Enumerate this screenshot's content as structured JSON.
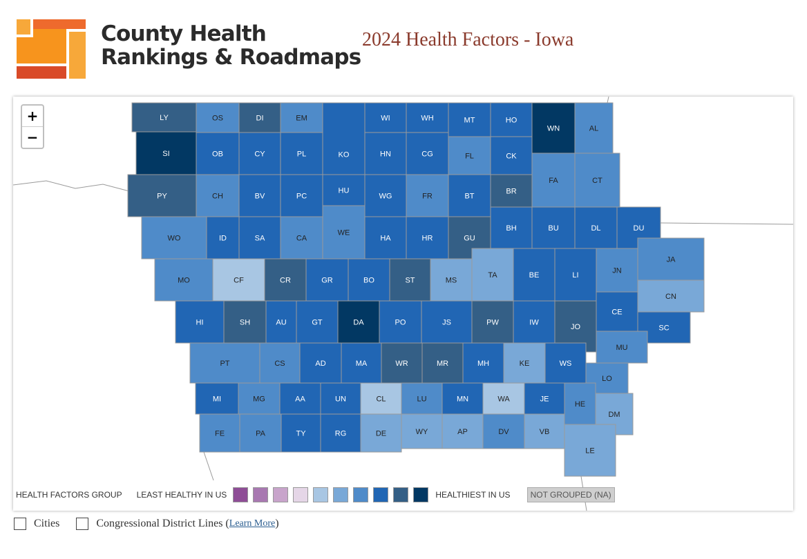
{
  "header": {
    "brand_line1": "County Health",
    "brand_line2": "Rankings & Roadmaps",
    "map_title": "2024 Health Factors - Iowa"
  },
  "zoom": {
    "in_label": "+",
    "out_label": "−"
  },
  "legend": {
    "group_label": "HEALTH FACTORS GROUP",
    "least_label": "LEAST HEALTHY IN US",
    "most_label": "HEALTHIEST IN US",
    "na_label": "NOT GROUPED (NA)",
    "colors": [
      "#8e4d96",
      "#a878b1",
      "#c8a4cb",
      "#e5d6e7",
      "#a8c6e3",
      "#79a8d7",
      "#4f8bc9",
      "#2166b4",
      "#345f86",
      "#023863"
    ]
  },
  "options": {
    "cities_label": "Cities",
    "congress_label": "Congressional District Lines (",
    "learn_more": "Learn More",
    "close_paren": ")"
  },
  "counties": [
    {
      "abbr": "LY",
      "g": 9
    },
    {
      "abbr": "OS",
      "g": 7
    },
    {
      "abbr": "DI",
      "g": 9
    },
    {
      "abbr": "EM",
      "g": 7
    },
    {
      "abbr": "KO",
      "g": 8
    },
    {
      "abbr": "WI",
      "g": 8
    },
    {
      "abbr": "WH",
      "g": 8
    },
    {
      "abbr": "MT",
      "g": 8
    },
    {
      "abbr": "HO",
      "g": 8
    },
    {
      "abbr": "WN",
      "g": 10
    },
    {
      "abbr": "AL",
      "g": 7
    },
    {
      "abbr": "SI",
      "g": 10
    },
    {
      "abbr": "OB",
      "g": 8
    },
    {
      "abbr": "CY",
      "g": 8
    },
    {
      "abbr": "PL",
      "g": 8
    },
    {
      "abbr": "HN",
      "g": 8
    },
    {
      "abbr": "CG",
      "g": 8
    },
    {
      "abbr": "FL",
      "g": 7
    },
    {
      "abbr": "CK",
      "g": 8
    },
    {
      "abbr": "FA",
      "g": 7
    },
    {
      "abbr": "CT",
      "g": 7
    },
    {
      "abbr": "PY",
      "g": 9
    },
    {
      "abbr": "CH",
      "g": 7
    },
    {
      "abbr": "BV",
      "g": 8
    },
    {
      "abbr": "PC",
      "g": 8
    },
    {
      "abbr": "HU",
      "g": 8
    },
    {
      "abbr": "WG",
      "g": 8
    },
    {
      "abbr": "FR",
      "g": 7
    },
    {
      "abbr": "BT",
      "g": 8
    },
    {
      "abbr": "BR",
      "g": 9
    },
    {
      "abbr": "WO",
      "g": 7
    },
    {
      "abbr": "ID",
      "g": 8
    },
    {
      "abbr": "SA",
      "g": 8
    },
    {
      "abbr": "CA",
      "g": 7
    },
    {
      "abbr": "WE",
      "g": 7
    },
    {
      "abbr": "HA",
      "g": 8
    },
    {
      "abbr": "HR",
      "g": 8
    },
    {
      "abbr": "GU",
      "g": 9
    },
    {
      "abbr": "BH",
      "g": 8
    },
    {
      "abbr": "BU",
      "g": 8
    },
    {
      "abbr": "DL",
      "g": 8
    },
    {
      "abbr": "DU",
      "g": 8
    },
    {
      "abbr": "MO",
      "g": 7
    },
    {
      "abbr": "CF",
      "g": 5
    },
    {
      "abbr": "CR",
      "g": 9
    },
    {
      "abbr": "GR",
      "g": 8
    },
    {
      "abbr": "BO",
      "g": 8
    },
    {
      "abbr": "ST",
      "g": 9
    },
    {
      "abbr": "MS",
      "g": 6
    },
    {
      "abbr": "TA",
      "g": 6
    },
    {
      "abbr": "BE",
      "g": 8
    },
    {
      "abbr": "LI",
      "g": 8
    },
    {
      "abbr": "JN",
      "g": 7
    },
    {
      "abbr": "JA",
      "g": 7
    },
    {
      "abbr": "CN",
      "g": 6
    },
    {
      "abbr": "HI",
      "g": 8
    },
    {
      "abbr": "SH",
      "g": 9
    },
    {
      "abbr": "AU",
      "g": 8
    },
    {
      "abbr": "GT",
      "g": 8
    },
    {
      "abbr": "DA",
      "g": 10
    },
    {
      "abbr": "PO",
      "g": 8
    },
    {
      "abbr": "JS",
      "g": 8
    },
    {
      "abbr": "PW",
      "g": 9
    },
    {
      "abbr": "IW",
      "g": 8
    },
    {
      "abbr": "JO",
      "g": 9
    },
    {
      "abbr": "CE",
      "g": 8
    },
    {
      "abbr": "SC",
      "g": 8
    },
    {
      "abbr": "PT",
      "g": 7
    },
    {
      "abbr": "CS",
      "g": 7
    },
    {
      "abbr": "AD",
      "g": 8
    },
    {
      "abbr": "MA",
      "g": 8
    },
    {
      "abbr": "WR",
      "g": 9
    },
    {
      "abbr": "MR",
      "g": 9
    },
    {
      "abbr": "MH",
      "g": 8
    },
    {
      "abbr": "KE",
      "g": 6
    },
    {
      "abbr": "WS",
      "g": 8
    },
    {
      "abbr": "MU",
      "g": 7
    },
    {
      "abbr": "LO",
      "g": 7
    },
    {
      "abbr": "MI",
      "g": 8
    },
    {
      "abbr": "MG",
      "g": 7
    },
    {
      "abbr": "AA",
      "g": 8
    },
    {
      "abbr": "UN",
      "g": 8
    },
    {
      "abbr": "CL",
      "g": 5
    },
    {
      "abbr": "LU",
      "g": 7
    },
    {
      "abbr": "MN",
      "g": 8
    },
    {
      "abbr": "WA",
      "g": 5
    },
    {
      "abbr": "JE",
      "g": 8
    },
    {
      "abbr": "HE",
      "g": 7
    },
    {
      "abbr": "DM",
      "g": 6
    },
    {
      "abbr": "FE",
      "g": 7
    },
    {
      "abbr": "PA",
      "g": 7
    },
    {
      "abbr": "TY",
      "g": 8
    },
    {
      "abbr": "RG",
      "g": 8
    },
    {
      "abbr": "DE",
      "g": 6
    },
    {
      "abbr": "WY",
      "g": 6
    },
    {
      "abbr": "AP",
      "g": 6
    },
    {
      "abbr": "DV",
      "g": 7
    },
    {
      "abbr": "VB",
      "g": 6
    },
    {
      "abbr": "LE",
      "g": 6
    }
  ]
}
